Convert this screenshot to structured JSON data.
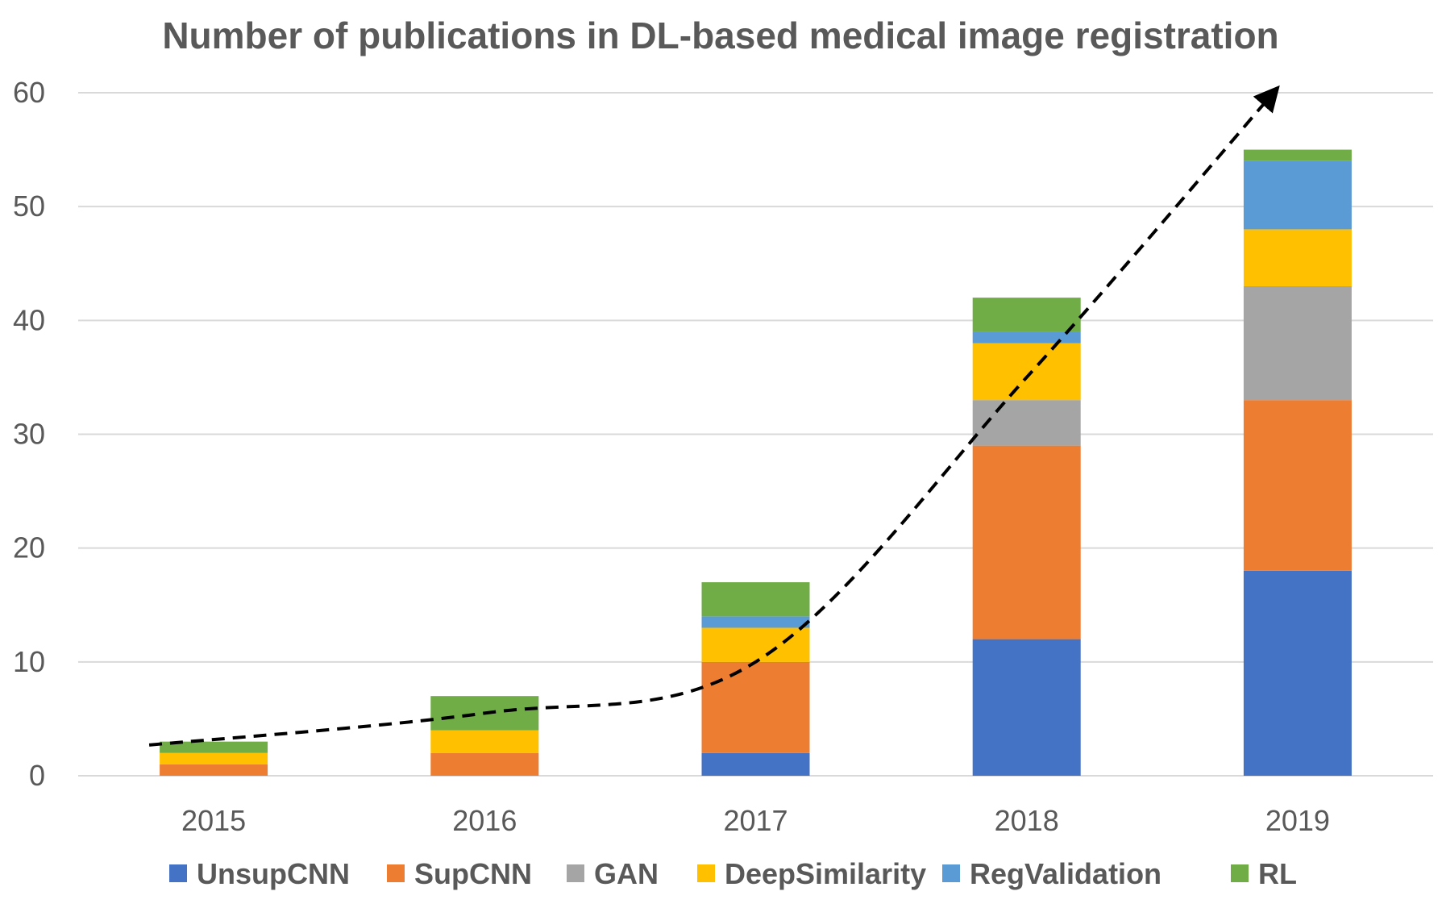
{
  "chart_data": {
    "type": "bar",
    "stacked": true,
    "title": "Number of publications in DL-based medical image registration",
    "xlabel": "",
    "ylabel": "",
    "categories": [
      "2015",
      "2016",
      "2017",
      "2018",
      "2019"
    ],
    "ylim": [
      0,
      60
    ],
    "yticks": [
      "0",
      "10",
      "20",
      "30",
      "40",
      "50",
      "60"
    ],
    "grid": true,
    "legend_position": "bottom",
    "series": [
      {
        "name": "UnsupCNN",
        "color": "#4472C4",
        "values": [
          0,
          0,
          2,
          12,
          18
        ]
      },
      {
        "name": "SupCNN",
        "color": "#ED7D31",
        "values": [
          1,
          2,
          8,
          17,
          15
        ]
      },
      {
        "name": "GAN",
        "color": "#A5A5A5",
        "values": [
          0,
          0,
          0,
          4,
          10
        ]
      },
      {
        "name": "DeepSimilarity",
        "color": "#FFC000",
        "values": [
          1,
          2,
          3,
          5,
          5
        ]
      },
      {
        "name": "RegValidation",
        "color": "#5B9BD5",
        "values": [
          0,
          0,
          1,
          1,
          6
        ]
      },
      {
        "name": "RL",
        "color": "#70AD47",
        "values": [
          1,
          3,
          3,
          3,
          1
        ]
      }
    ],
    "trend_arrow": {
      "style": "dashed",
      "color": "#000000",
      "x": [
        2015,
        2016,
        2017,
        2018,
        2019
      ],
      "y": [
        2.7,
        5.5,
        10,
        35,
        60
      ]
    }
  }
}
